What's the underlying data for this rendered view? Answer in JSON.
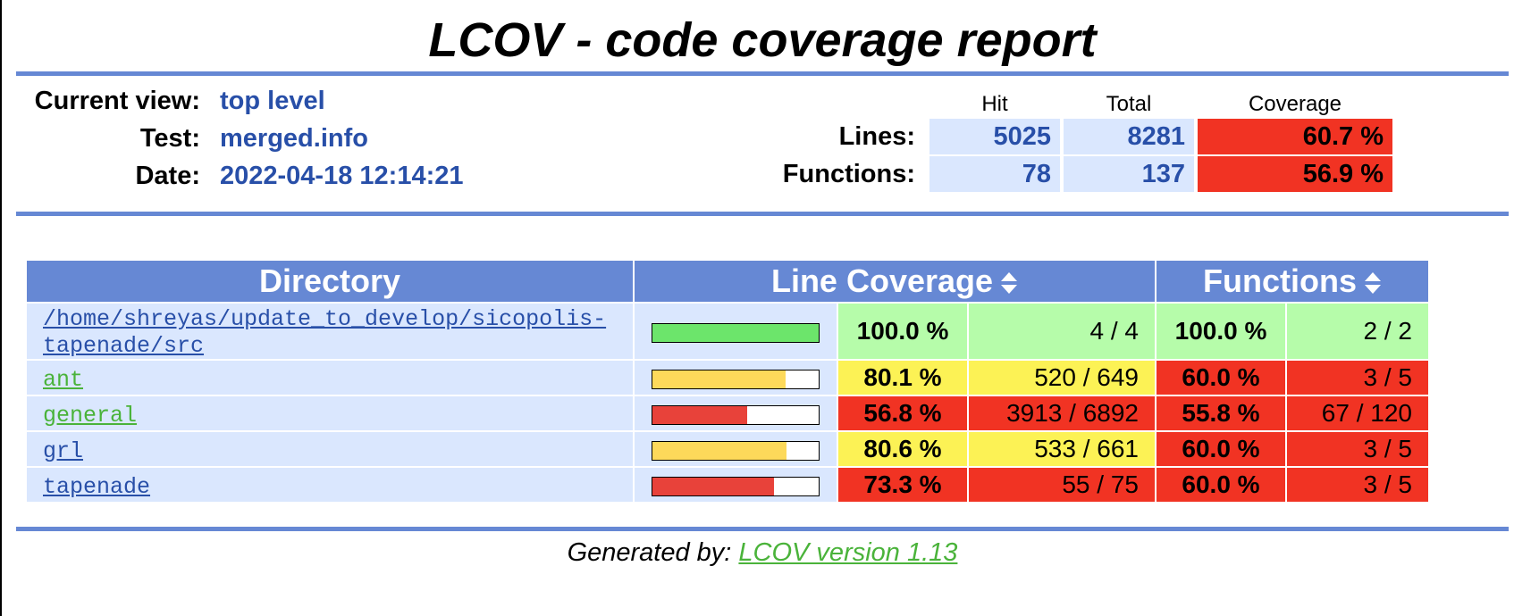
{
  "title": "LCOV - code coverage report",
  "info": {
    "current_view_label": "Current view:",
    "current_view_value": "top level",
    "test_label": "Test:",
    "test_value": "merged.info",
    "date_label": "Date:",
    "date_value": "2022-04-18 12:14:21"
  },
  "summary": {
    "col_hit": "Hit",
    "col_total": "Total",
    "col_coverage": "Coverage",
    "lines_label": "Lines:",
    "lines_hit": "5025",
    "lines_total": "8281",
    "lines_coverage": "60.7 %",
    "functions_label": "Functions:",
    "functions_hit": "78",
    "functions_total": "137",
    "functions_coverage": "56.9 %"
  },
  "table": {
    "col_directory": "Directory",
    "col_line_coverage": "Line Coverage",
    "col_functions": "Functions",
    "rows": [
      {
        "name": "/home/shreyas/update_to_develop/sicopolis-",
        "name2": "tapenade/src",
        "link_color": "#284fa8",
        "bar_fraction": 1.0,
        "bar_color": "#6ce56b",
        "line_pct": "100.0 %",
        "line_count": "4 / 4",
        "line_bg": "#b6fcaa",
        "func_pct": "100.0 %",
        "func_count": "2 / 2",
        "func_bg": "#b6fcaa"
      },
      {
        "name": "ant",
        "name2": "",
        "link_color": "#4ab33a",
        "bar_fraction": 0.801,
        "bar_color": "#fdd95a",
        "line_pct": "80.1 %",
        "line_count": "520 / 649",
        "line_bg": "#fcf255",
        "func_pct": "60.0 %",
        "func_count": "3 / 5",
        "func_bg": "#f13323"
      },
      {
        "name": "general",
        "name2": "",
        "link_color": "#4ab33a",
        "bar_fraction": 0.568,
        "bar_color": "#e8423a",
        "line_pct": "56.8 %",
        "line_count": "3913 / 6892",
        "line_bg": "#f13323",
        "func_pct": "55.8 %",
        "func_count": "67 / 120",
        "func_bg": "#f13323"
      },
      {
        "name": "grl",
        "name2": "",
        "link_color": "#284fa8",
        "bar_fraction": 0.806,
        "bar_color": "#fdd95a",
        "line_pct": "80.6 %",
        "line_count": "533 / 661",
        "line_bg": "#fcf255",
        "func_pct": "60.0 %",
        "func_count": "3 / 5",
        "func_bg": "#f13323"
      },
      {
        "name": "tapenade",
        "name2": "",
        "link_color": "#284fa8",
        "bar_fraction": 0.733,
        "bar_color": "#e8423a",
        "line_pct": "73.3 %",
        "line_count": "55 / 75",
        "line_bg": "#f13323",
        "func_pct": "60.0 %",
        "func_count": "3 / 5",
        "func_bg": "#f13323"
      }
    ]
  },
  "footer": {
    "prefix": "Generated by: ",
    "link": "LCOV version 1.13"
  },
  "colors": {
    "header_blue": "#6688d4",
    "light_blue": "#dae7fe",
    "red": "#f13323",
    "yellow": "#fcf255",
    "green": "#b6fcaa"
  }
}
